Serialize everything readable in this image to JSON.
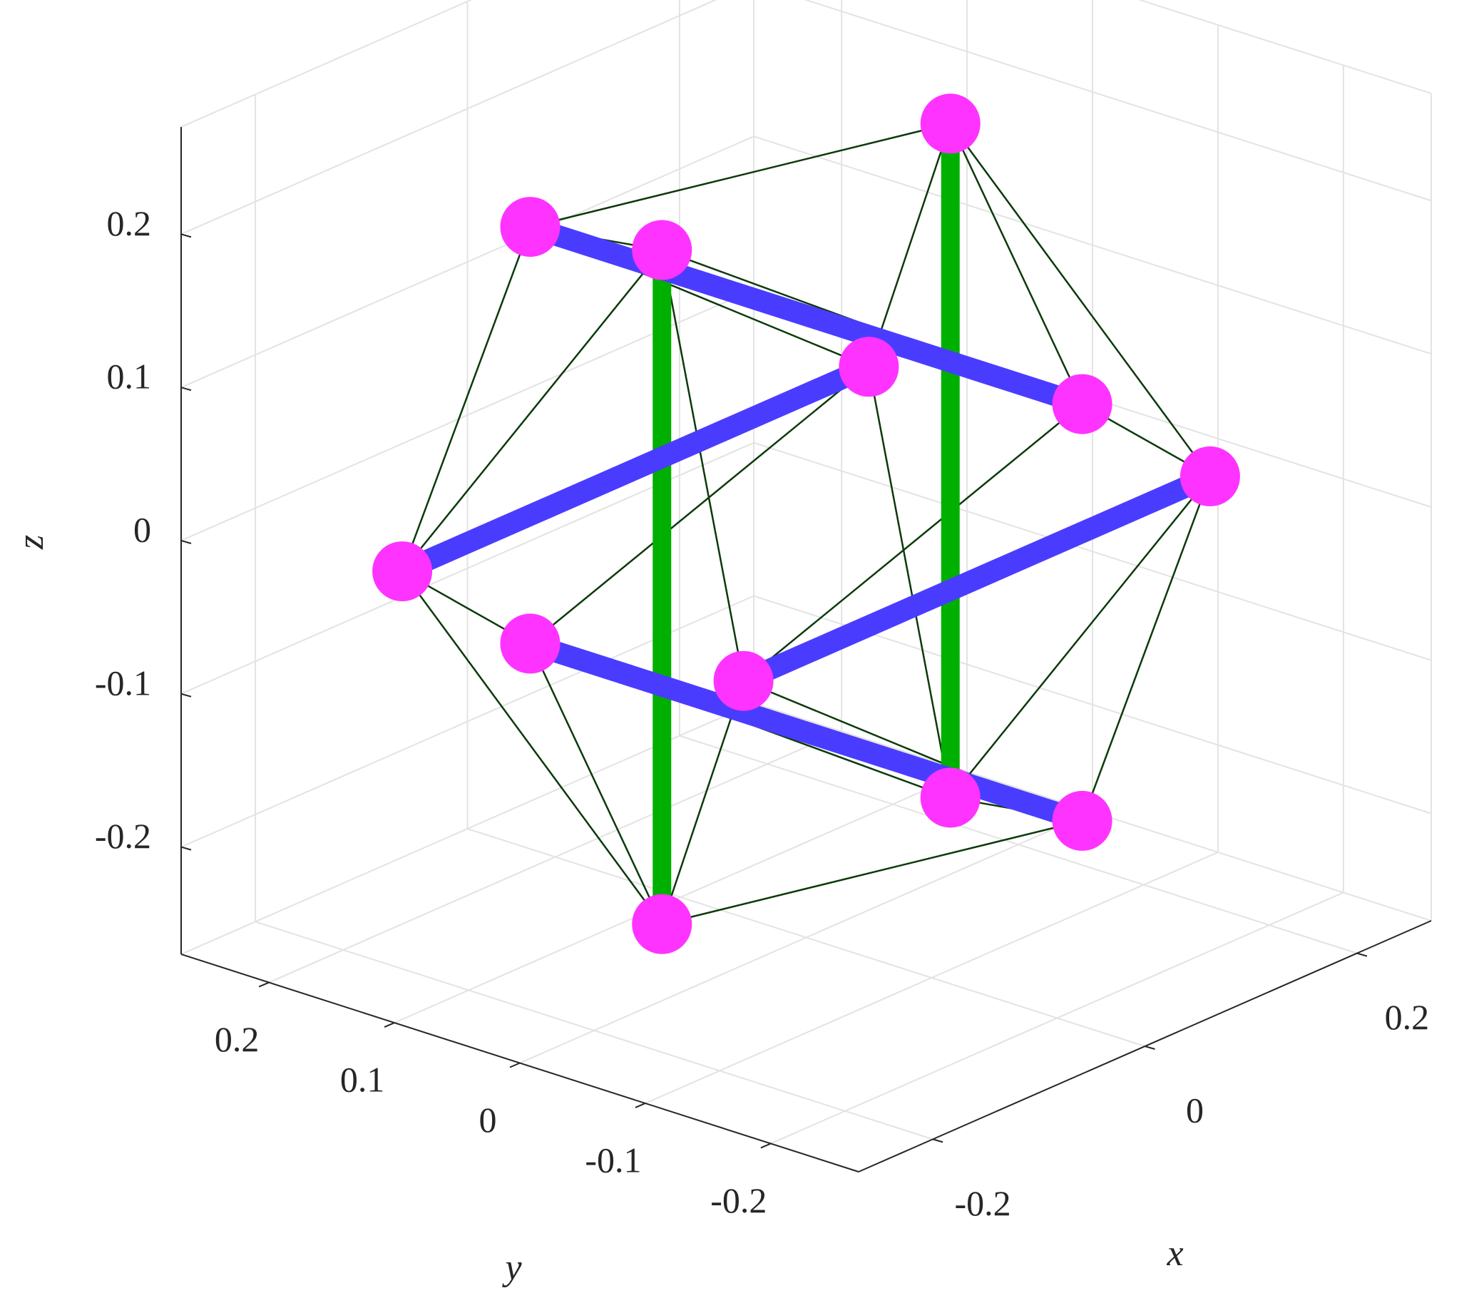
{
  "chart_data": {
    "type": "scatter3d",
    "x_label": "x",
    "y_label": "y",
    "z_label": "z",
    "xlim": [
      -0.27,
      0.27
    ],
    "ylim": [
      -0.27,
      0.27
    ],
    "zlim": [
      -0.27,
      0.27
    ],
    "xticks": [
      -0.2,
      0,
      0.2
    ],
    "yticks": [
      -0.2,
      -0.1,
      0,
      0.1,
      0.2
    ],
    "zticks": [
      -0.2,
      -0.1,
      0,
      0.1,
      0.2
    ],
    "grid": true,
    "nodes": {
      "x": [
        0.136,
        0.136,
        -0.136,
        -0.136,
        0.22,
        -0.22,
        0.22,
        -0.22,
        0,
        0,
        0,
        0
      ],
      "y": [
        0,
        0,
        0,
        0,
        0.136,
        0.136,
        -0.136,
        -0.136,
        0.22,
        -0.22,
        0.22,
        -0.22
      ],
      "z": [
        0.22,
        -0.22,
        0.22,
        -0.22,
        0,
        0,
        0,
        0,
        0.136,
        0.136,
        -0.136,
        -0.136
      ],
      "color": "#ff33ff"
    },
    "bars": [
      {
        "nodes": [
          0,
          1
        ],
        "color": "#00b000"
      },
      {
        "nodes": [
          2,
          3
        ],
        "color": "#00b000"
      },
      {
        "nodes": [
          4,
          5
        ],
        "color": "#4a3cff"
      },
      {
        "nodes": [
          6,
          7
        ],
        "color": "#4a3cff"
      },
      {
        "nodes": [
          8,
          9
        ],
        "color": "#4a3cff"
      },
      {
        "nodes": [
          10,
          11
        ],
        "color": "#4a3cff"
      }
    ],
    "strings": {
      "color": "#0b3a0b",
      "pairs": [
        [
          0,
          4
        ],
        [
          0,
          6
        ],
        [
          0,
          8
        ],
        [
          0,
          9
        ],
        [
          2,
          5
        ],
        [
          2,
          7
        ],
        [
          2,
          8
        ],
        [
          2,
          9
        ],
        [
          1,
          4
        ],
        [
          1,
          6
        ],
        [
          1,
          10
        ],
        [
          1,
          11
        ],
        [
          3,
          5
        ],
        [
          3,
          7
        ],
        [
          3,
          10
        ],
        [
          3,
          11
        ],
        [
          4,
          8
        ],
        [
          4,
          10
        ],
        [
          6,
          9
        ],
        [
          6,
          11
        ],
        [
          5,
          8
        ],
        [
          5,
          10
        ],
        [
          7,
          9
        ],
        [
          7,
          11
        ]
      ]
    }
  }
}
